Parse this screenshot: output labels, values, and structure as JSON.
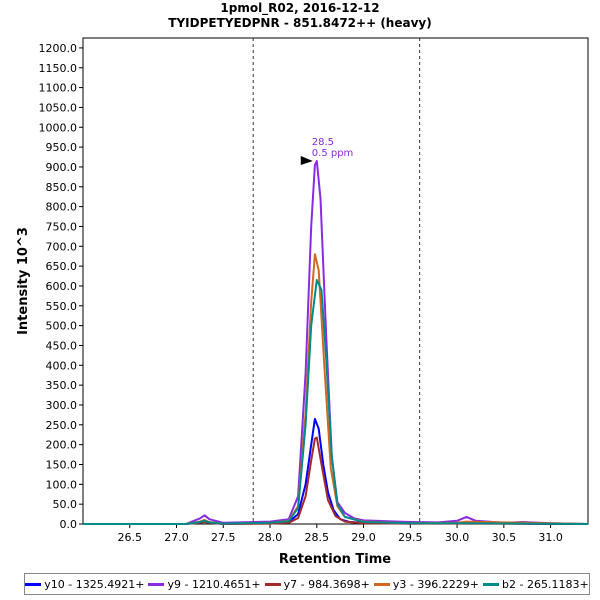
{
  "chart_data": {
    "type": "line",
    "title": "1pmol_R02, 2016-12-12",
    "subtitle": "TYIDPETYEDPNR - 851.8472++ (heavy)",
    "xlabel": "Retention Time",
    "ylabel": "Intensity 10^3",
    "xlim": [
      26.0,
      31.4
    ],
    "ylim": [
      0,
      1225
    ],
    "x_ticks": [
      "26.5",
      "27.0",
      "27.5",
      "28.0",
      "28.5",
      "29.0",
      "29.5",
      "30.0",
      "30.5",
      "31.0"
    ],
    "y_ticks": [
      "0.0",
      "50.0",
      "100.0",
      "150.0",
      "200.0",
      "250.0",
      "300.0",
      "350.0",
      "400.0",
      "450.0",
      "500.0",
      "550.0",
      "600.0",
      "650.0",
      "700.0",
      "750.0",
      "800.0",
      "850.0",
      "900.0",
      "950.0",
      "1000.0",
      "1050.0",
      "1100.0",
      "1150.0",
      "1200.0"
    ],
    "integration_bounds": [
      27.82,
      29.6
    ],
    "peak_annotation": {
      "x": 28.5,
      "y": 915,
      "line1": "28.5",
      "line2": "0.5 ppm",
      "color": "#8a2be2"
    },
    "grid": false,
    "legend_position": "bottom",
    "series": [
      {
        "name": "y10 - 1325.4921+",
        "color": "#0000ff",
        "x": [
          26.0,
          27.1,
          27.25,
          27.3,
          27.35,
          27.5,
          28.0,
          28.2,
          28.3,
          28.38,
          28.44,
          28.48,
          28.52,
          28.57,
          28.62,
          28.68,
          28.75,
          28.85,
          29.0,
          29.5,
          30.0,
          30.1,
          30.2,
          31.0,
          31.4
        ],
        "y": [
          0,
          0,
          5,
          8,
          4,
          0,
          2,
          5,
          25,
          100,
          200,
          265,
          240,
          150,
          80,
          35,
          12,
          5,
          3,
          1,
          2,
          5,
          2,
          0,
          0
        ]
      },
      {
        "name": "y9 - 1210.4651+",
        "color": "#8a2be2",
        "x": [
          26.0,
          27.1,
          27.25,
          27.3,
          27.35,
          27.5,
          28.0,
          28.2,
          28.3,
          28.38,
          28.44,
          28.48,
          28.5,
          28.54,
          28.6,
          28.66,
          28.72,
          28.8,
          28.9,
          29.0,
          29.5,
          29.8,
          30.0,
          30.1,
          30.2,
          30.5,
          30.7,
          31.0,
          31.4
        ],
        "y": [
          0,
          0,
          14,
          22,
          12,
          3,
          6,
          12,
          70,
          380,
          750,
          905,
          915,
          820,
          480,
          170,
          55,
          28,
          14,
          9,
          5,
          4,
          8,
          18,
          8,
          3,
          5,
          2,
          0
        ]
      },
      {
        "name": "y7 - 984.3698+",
        "color": "#a52a2a",
        "x": [
          26.0,
          27.1,
          27.25,
          27.3,
          27.35,
          27.5,
          28.0,
          28.2,
          28.3,
          28.38,
          28.44,
          28.48,
          28.5,
          28.55,
          28.62,
          28.7,
          28.8,
          29.0,
          29.5,
          30.0,
          31.4
        ],
        "y": [
          0,
          0,
          3,
          5,
          3,
          0,
          1,
          3,
          15,
          70,
          160,
          215,
          218,
          150,
          60,
          20,
          6,
          2,
          1,
          1,
          0
        ]
      },
      {
        "name": "y3 - 396.2229+",
        "color": "#d2691e",
        "x": [
          26.0,
          27.1,
          27.25,
          27.3,
          27.35,
          27.5,
          28.0,
          28.2,
          28.3,
          28.38,
          28.44,
          28.48,
          28.52,
          28.58,
          28.65,
          28.72,
          28.8,
          29.0,
          29.5,
          30.0,
          30.1,
          31.4
        ],
        "y": [
          0,
          0,
          6,
          10,
          5,
          1,
          3,
          8,
          45,
          280,
          560,
          680,
          640,
          400,
          140,
          45,
          18,
          6,
          2,
          3,
          6,
          0
        ]
      },
      {
        "name": "b2 - 265.1183+",
        "color": "#008b8b",
        "x": [
          26.0,
          27.1,
          27.25,
          27.3,
          27.35,
          27.5,
          28.0,
          28.2,
          28.3,
          28.38,
          28.44,
          28.5,
          28.55,
          28.6,
          28.66,
          28.72,
          28.8,
          29.0,
          29.5,
          30.0,
          31.4
        ],
        "y": [
          0,
          0,
          5,
          8,
          4,
          1,
          3,
          7,
          40,
          250,
          500,
          615,
          590,
          420,
          170,
          50,
          18,
          5,
          2,
          2,
          0
        ]
      }
    ]
  }
}
